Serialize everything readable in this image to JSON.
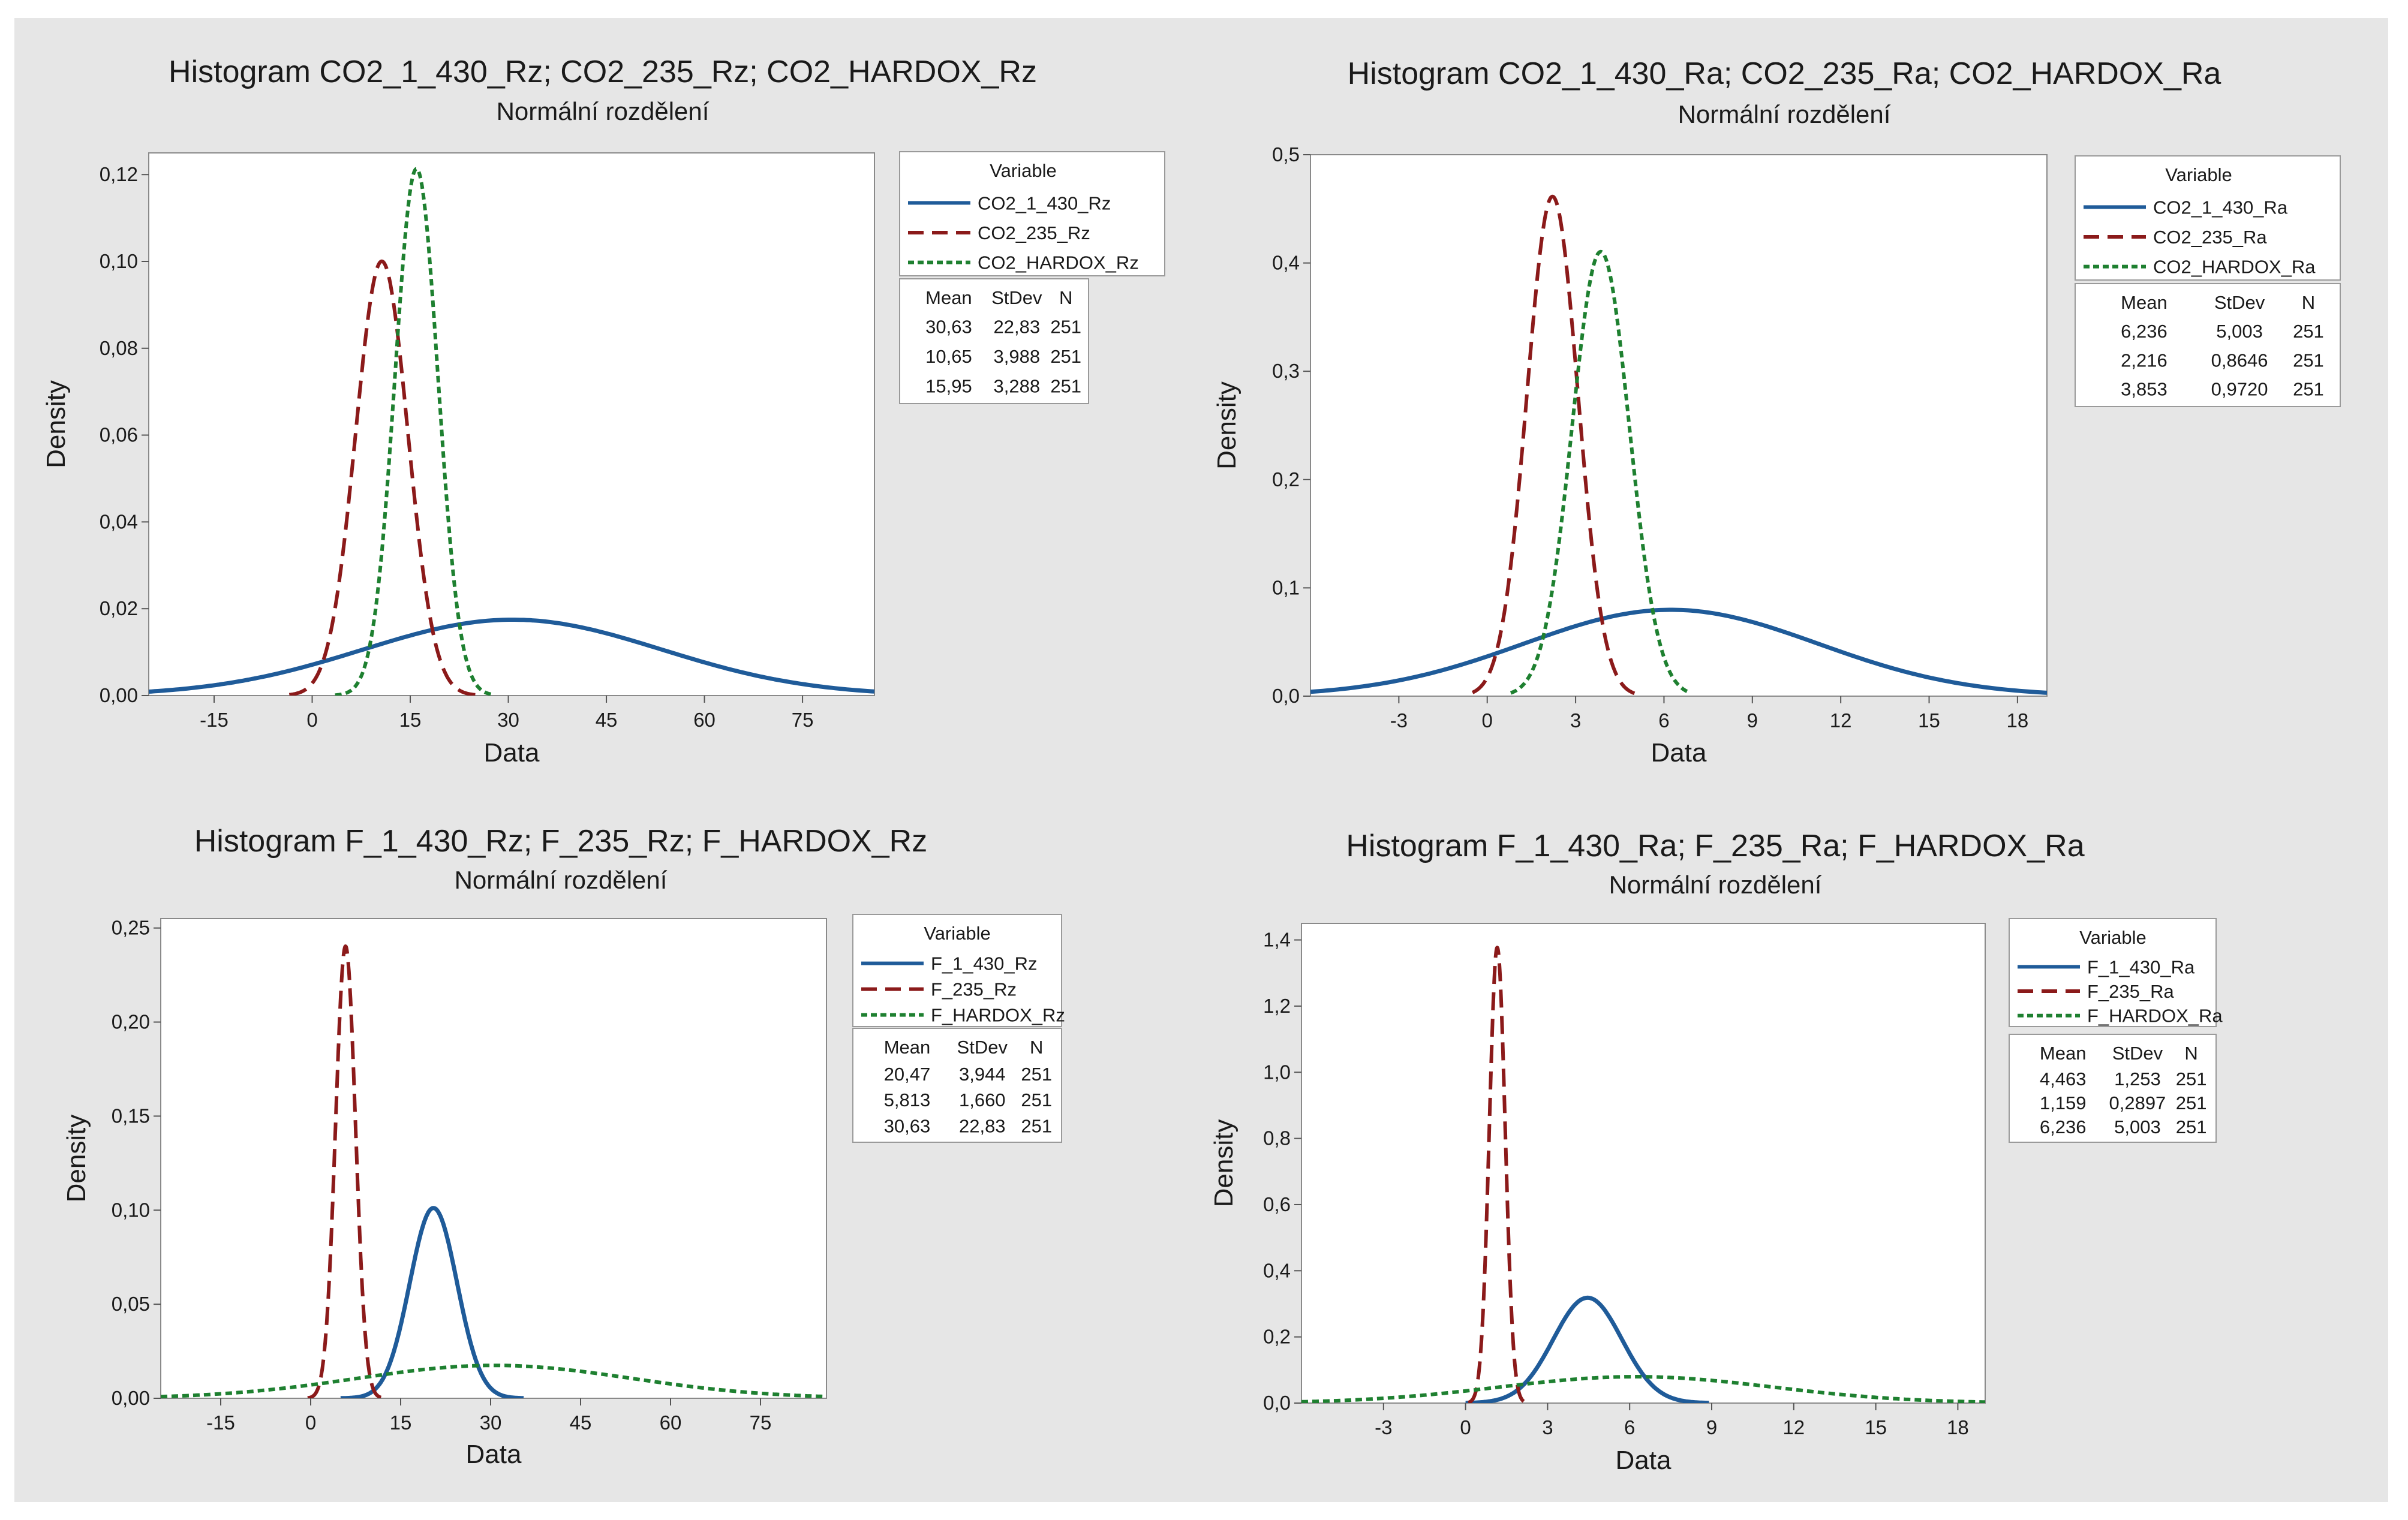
{
  "chart_data": [
    {
      "type": "line",
      "title": "Histogram CO2_1_430_Rz; CO2_235_Rz; CO2_HARDOX_Rz",
      "subtitle": "Normální rozdělení",
      "xlabel": "Data",
      "ylabel": "Density",
      "xlim": [
        -25,
        86
      ],
      "ylim": [
        0,
        0.125
      ],
      "xticks": [
        -15,
        0,
        15,
        30,
        45,
        60,
        75
      ],
      "xtick_labels": [
        "-15",
        "0",
        "15",
        "30",
        "45",
        "60",
        "75"
      ],
      "yticks": [
        0,
        0.02,
        0.04,
        0.06,
        0.08,
        0.1,
        0.12
      ],
      "ytick_labels": [
        "0,00",
        "0,02",
        "0,04",
        "0,06",
        "0,08",
        "0,10",
        "0,12"
      ],
      "legend_title": "Variable",
      "stats_headers": [
        "Mean",
        "StDev",
        "N"
      ],
      "series": [
        {
          "name": "CO2_1_430_Rz",
          "mean": 30.63,
          "sd": 22.83,
          "n": 251,
          "range": [
            -25,
            86
          ],
          "stats": [
            "30,63",
            "22,83",
            "251"
          ],
          "color": "#1f5b99",
          "style": "solid"
        },
        {
          "name": "CO2_235_Rz",
          "mean": 10.65,
          "sd": 3.988,
          "n": 251,
          "range": [
            -3.5,
            25
          ],
          "stats": [
            "10,65",
            "3,988",
            "251"
          ],
          "color": "#8b1a1a",
          "style": "dashed"
        },
        {
          "name": "CO2_HARDOX_Rz",
          "mean": 15.95,
          "sd": 3.288,
          "n": 251,
          "range": [
            3.5,
            27.5
          ],
          "stats": [
            "15,95",
            "3,288",
            "251"
          ],
          "color": "#1e8030",
          "style": "dotted"
        }
      ]
    },
    {
      "type": "line",
      "title": "Histogram  CO2_1_430_Ra; CO2_235_Ra; CO2_HARDOX_Ra",
      "subtitle": "Normální rozdělení",
      "xlabel": "Data",
      "ylabel": "Density",
      "xlim": [
        -6,
        19
      ],
      "ylim": [
        0,
        0.5
      ],
      "xticks": [
        -3,
        0,
        3,
        6,
        9,
        12,
        15,
        18
      ],
      "xtick_labels": [
        "-3",
        "0",
        "3",
        "6",
        "9",
        "12",
        "15",
        "18"
      ],
      "yticks": [
        0,
        0.1,
        0.2,
        0.3,
        0.4,
        0.5
      ],
      "ytick_labels": [
        "0,0",
        "0,1",
        "0,2",
        "0,3",
        "0,4",
        "0,5"
      ],
      "legend_title": "Variable",
      "stats_headers": [
        "Mean",
        "StDev",
        "N"
      ],
      "series": [
        {
          "name": "CO2_1_430_Ra",
          "mean": 6.236,
          "sd": 5.003,
          "n": 251,
          "range": [
            -6,
            19
          ],
          "stats": [
            "6,236",
            "5,003",
            "251"
          ],
          "color": "#1f5b99",
          "style": "solid"
        },
        {
          "name": "CO2_235_Ra",
          "mean": 2.216,
          "sd": 0.8646,
          "n": 251,
          "range": [
            -0.5,
            5
          ],
          "stats": [
            "2,216",
            "0,8646",
            "251"
          ],
          "color": "#8b1a1a",
          "style": "dashed"
        },
        {
          "name": "CO2_HARDOX_Ra",
          "mean": 3.853,
          "sd": 0.972,
          "n": 251,
          "range": [
            0.8,
            6.9
          ],
          "stats": [
            "3,853",
            "0,9720",
            "251"
          ],
          "color": "#1e8030",
          "style": "dotted"
        }
      ]
    },
    {
      "type": "line",
      "title": "Histogram F_1_430_Rz; F_235_Rz; F_HARDOX_Rz",
      "subtitle": "Normální rozdělení",
      "xlabel": "Data",
      "ylabel": "Density",
      "xlim": [
        -25,
        86
      ],
      "ylim": [
        0,
        0.255
      ],
      "xticks": [
        -15,
        0,
        15,
        30,
        45,
        60,
        75
      ],
      "xtick_labels": [
        "-15",
        "0",
        "15",
        "30",
        "45",
        "60",
        "75"
      ],
      "yticks": [
        0,
        0.05,
        0.1,
        0.15,
        0.2,
        0.25
      ],
      "ytick_labels": [
        "0,00",
        "0,05",
        "0,10",
        "0,15",
        "0,20",
        "0,25"
      ],
      "legend_title": "Variable",
      "stats_headers": [
        "Mean",
        "StDev",
        "N"
      ],
      "series": [
        {
          "name": "F_1_430_Rz",
          "mean": 20.47,
          "sd": 3.944,
          "n": 251,
          "range": [
            5,
            35.5
          ],
          "stats": [
            "20,47",
            "3,944",
            "251"
          ],
          "color": "#1f5b99",
          "style": "solid"
        },
        {
          "name": "F_235_Rz",
          "mean": 5.813,
          "sd": 1.66,
          "n": 251,
          "range": [
            -0.5,
            12
          ],
          "stats": [
            "5,813",
            "1,660",
            "251"
          ],
          "color": "#8b1a1a",
          "style": "dashed"
        },
        {
          "name": "F_HARDOX_Rz",
          "mean": 30.63,
          "sd": 22.83,
          "n": 251,
          "range": [
            -25,
            86
          ],
          "stats": [
            "30,63",
            "22,83",
            "251"
          ],
          "color": "#1e8030",
          "style": "dotted"
        }
      ]
    },
    {
      "type": "line",
      "title": "Histogram F_1_430_Ra; F_235_Ra; F_HARDOX_Ra",
      "subtitle": "Normální rozdělení",
      "xlabel": "Data",
      "ylabel": "Density",
      "xlim": [
        -6,
        19
      ],
      "ylim": [
        0,
        1.45
      ],
      "xticks": [
        -3,
        0,
        3,
        6,
        9,
        12,
        15,
        18
      ],
      "xtick_labels": [
        "-3",
        "0",
        "3",
        "6",
        "9",
        "12",
        "15",
        "18"
      ],
      "yticks": [
        0,
        0.2,
        0.4,
        0.6,
        0.8,
        1.0,
        1.2,
        1.4
      ],
      "ytick_labels": [
        "0,0",
        "0,2",
        "0,4",
        "0,6",
        "0,8",
        "1,0",
        "1,2",
        "1,4"
      ],
      "legend_title": "Variable",
      "stats_headers": [
        "Mean",
        "StDev",
        "N"
      ],
      "series": [
        {
          "name": "F_1_430_Ra",
          "mean": 4.463,
          "sd": 1.253,
          "n": 251,
          "range": [
            0,
            8.9
          ],
          "stats": [
            "4,463",
            "1,253",
            "251"
          ],
          "color": "#1f5b99",
          "style": "solid"
        },
        {
          "name": "F_235_Ra",
          "mean": 1.159,
          "sd": 0.2897,
          "n": 251,
          "range": [
            0.1,
            2.2
          ],
          "stats": [
            "1,159",
            "0,2897",
            "251"
          ],
          "color": "#8b1a1a",
          "style": "dashed"
        },
        {
          "name": "F_HARDOX_Ra",
          "mean": 6.236,
          "sd": 5.003,
          "n": 251,
          "range": [
            -6,
            19
          ],
          "stats": [
            "6,236",
            "5,003",
            "251"
          ],
          "color": "#1e8030",
          "style": "dotted"
        }
      ]
    }
  ]
}
